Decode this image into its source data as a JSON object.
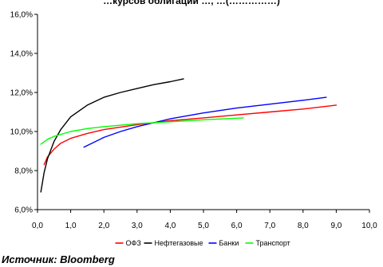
{
  "chart_data": {
    "type": "line",
    "title": "…курсов облигаций …, …(……………)",
    "xlabel": "",
    "ylabel": "",
    "xlim": [
      0,
      10
    ],
    "ylim": [
      6,
      16
    ],
    "x_ticks": [
      "0,0",
      "1,0",
      "2,0",
      "3,0",
      "4,0",
      "5,0",
      "6,0",
      "7,0",
      "8,0",
      "9,0",
      "10,0"
    ],
    "y_ticks": [
      "6,0%",
      "8,0%",
      "10,0%",
      "12,0%",
      "14,0%",
      "16,0%"
    ],
    "grid": false,
    "legend_position": "bottom",
    "series": [
      {
        "name": "ОФЗ",
        "color": "#ff0000",
        "x": [
          0.2,
          0.3,
          0.5,
          0.7,
          1.0,
          1.5,
          2.0,
          3.0,
          4.0,
          5.0,
          6.0,
          7.0,
          8.0,
          9.0
        ],
        "y": [
          8.3,
          8.7,
          9.1,
          9.4,
          9.65,
          9.9,
          10.1,
          10.35,
          10.55,
          10.7,
          10.85,
          11.0,
          11.15,
          11.35
        ]
      },
      {
        "name": "Нефтегазовые",
        "color": "#000000",
        "x": [
          0.1,
          0.2,
          0.3,
          0.5,
          0.7,
          1.0,
          1.5,
          2.0,
          2.5,
          3.0,
          3.5,
          4.0,
          4.4
        ],
        "y": [
          6.9,
          7.9,
          8.6,
          9.5,
          10.1,
          10.75,
          11.35,
          11.75,
          12.0,
          12.2,
          12.4,
          12.55,
          12.7
        ]
      },
      {
        "name": "Банки",
        "color": "#0000ff",
        "x": [
          1.4,
          2.0,
          2.5,
          3.0,
          3.5,
          4.0,
          5.0,
          6.0,
          7.0,
          8.0,
          8.7
        ],
        "y": [
          9.2,
          9.7,
          10.0,
          10.25,
          10.45,
          10.65,
          10.95,
          11.2,
          11.4,
          11.6,
          11.75
        ]
      },
      {
        "name": "Транспорт",
        "color": "#00ff00",
        "x": [
          0.1,
          0.3,
          0.5,
          1.0,
          1.5,
          2.0,
          3.0,
          4.0,
          5.0,
          6.2
        ],
        "y": [
          9.35,
          9.6,
          9.75,
          10.0,
          10.15,
          10.25,
          10.4,
          10.5,
          10.6,
          10.7
        ]
      }
    ]
  },
  "source": "Источник: Bloomberg"
}
